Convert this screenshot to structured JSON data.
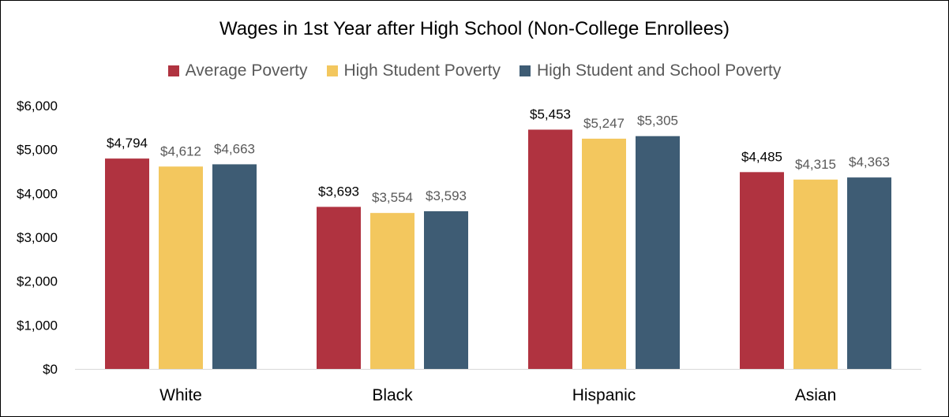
{
  "chart_data": {
    "type": "bar",
    "title": "Wages in 1st Year after High School (Non-College Enrollees)",
    "categories": [
      "White",
      "Black",
      "Hispanic",
      "Asian"
    ],
    "series": [
      {
        "name": "Average Poverty",
        "color": "#B03340",
        "values": [
          4794,
          3693,
          5453,
          4485
        ],
        "labels": [
          "$4,794",
          "$3,693",
          "$5,453",
          "$4,485"
        ]
      },
      {
        "name": "High Student Poverty",
        "color": "#F3C75E",
        "values": [
          4612,
          3554,
          5247,
          4315
        ],
        "labels": [
          "$4,612",
          "$3,554",
          "$5,247",
          "$4,315"
        ]
      },
      {
        "name": "High Student and School Poverty",
        "color": "#3E5C74",
        "values": [
          4663,
          3593,
          5305,
          4363
        ],
        "labels": [
          "$4,663",
          "$3,593",
          "$5,305",
          "$4,363"
        ]
      }
    ],
    "ylim": [
      0,
      6000
    ],
    "yticks": [
      0,
      1000,
      2000,
      3000,
      4000,
      5000,
      6000
    ],
    "ytick_labels": [
      "$0",
      "$1,000",
      "$2,000",
      "$3,000",
      "$4,000",
      "$5,000",
      "$6,000"
    ],
    "xlabel": "",
    "ylabel": "",
    "grid": false,
    "legend_position": "top-center",
    "first_series_label_color": "#000000",
    "other_series_label_color": "#595959"
  }
}
